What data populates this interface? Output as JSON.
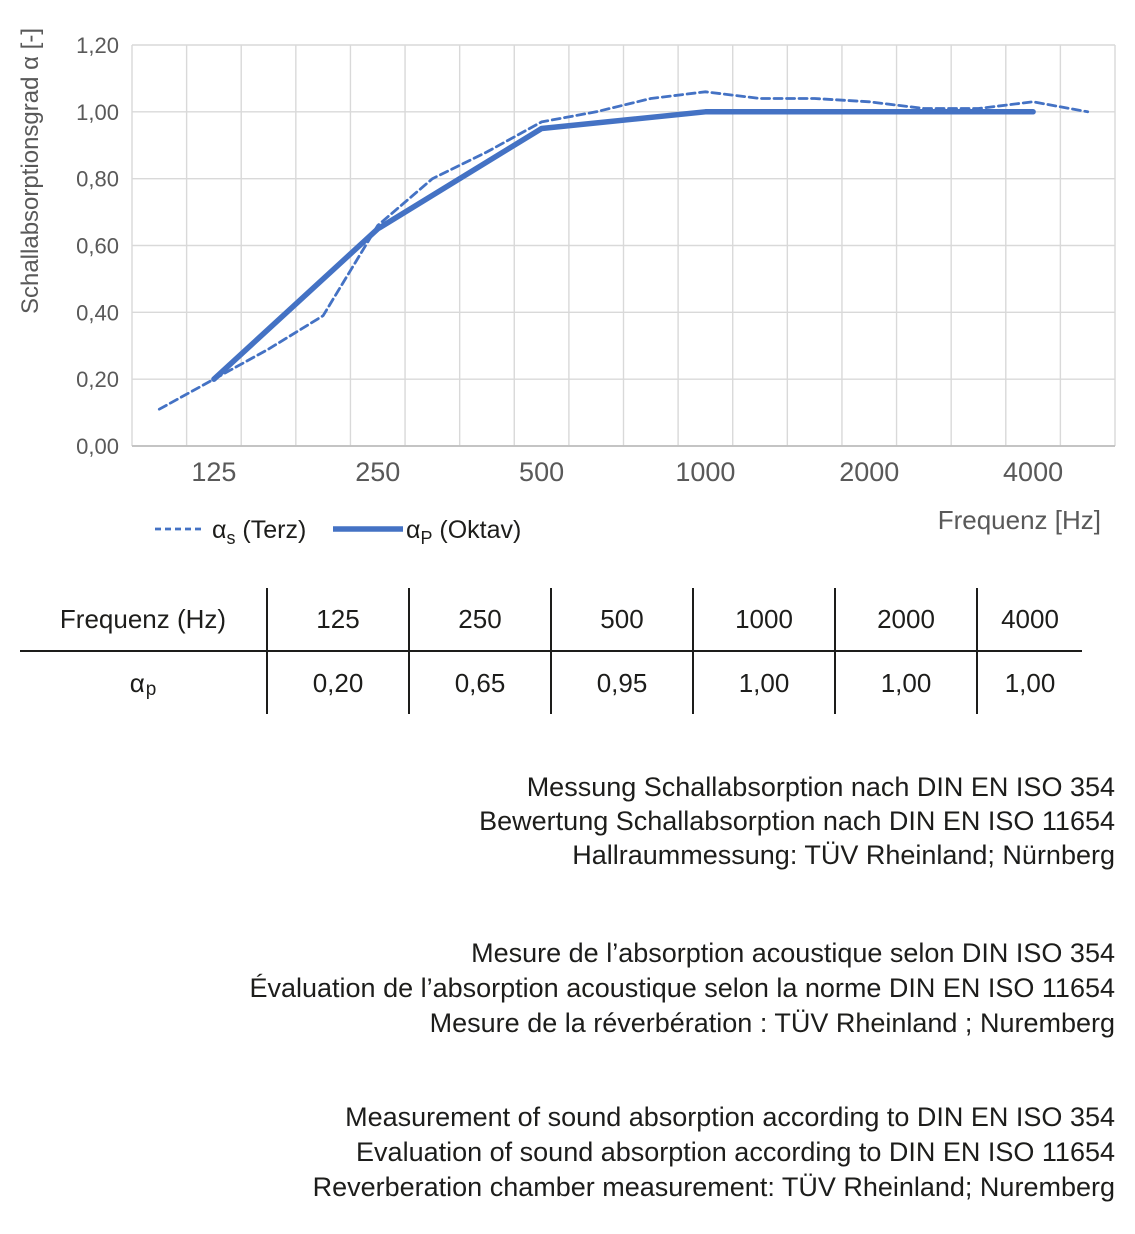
{
  "chart_data": {
    "type": "line",
    "title": "",
    "grid": true,
    "legend_position": "bottom-left",
    "x_axis": {
      "label": "Frequenz [Hz]",
      "scale": "third-octave-categories",
      "categories": [
        100,
        125,
        160,
        200,
        250,
        315,
        400,
        500,
        630,
        800,
        1000,
        1250,
        1600,
        2000,
        2500,
        3150,
        4000,
        5000
      ],
      "ticks": [
        {
          "f": 125,
          "label": "125"
        },
        {
          "f": 250,
          "label": "250"
        },
        {
          "f": 500,
          "label": "500"
        },
        {
          "f": 1000,
          "label": "1000"
        },
        {
          "f": 2000,
          "label": "2000"
        },
        {
          "f": 4000,
          "label": "4000"
        }
      ]
    },
    "y_axis": {
      "label": "Schallabsorptionsgrad α [-]",
      "min": 0,
      "max": 1.2,
      "ticks": [
        {
          "v": 0.0,
          "label": "0,00"
        },
        {
          "v": 0.2,
          "label": "0,20"
        },
        {
          "v": 0.4,
          "label": "0,40"
        },
        {
          "v": 0.6,
          "label": "0,60"
        },
        {
          "v": 0.8,
          "label": "0,80"
        },
        {
          "v": 1.0,
          "label": "1,00"
        },
        {
          "v": 1.2,
          "label": "1,20"
        }
      ]
    },
    "series": [
      {
        "name": "αs (Terz)",
        "label_base": "α",
        "label_sub": "s",
        "label_rest": " (Terz)",
        "style": "dashed",
        "points": [
          [
            100,
            0.11
          ],
          [
            125,
            0.2
          ],
          [
            160,
            0.29
          ],
          [
            200,
            0.39
          ],
          [
            250,
            0.66
          ],
          [
            315,
            0.8
          ],
          [
            400,
            0.88
          ],
          [
            500,
            0.97
          ],
          [
            630,
            1.0
          ],
          [
            800,
            1.04
          ],
          [
            1000,
            1.06
          ],
          [
            1250,
            1.04
          ],
          [
            1600,
            1.04
          ],
          [
            2000,
            1.03
          ],
          [
            2500,
            1.01
          ],
          [
            3150,
            1.01
          ],
          [
            4000,
            1.03
          ],
          [
            5000,
            1.0
          ]
        ]
      },
      {
        "name": "αP (Oktav)",
        "label_base": "α",
        "label_sub": "P",
        "label_rest": " (Oktav)",
        "style": "solid",
        "points": [
          [
            125,
            0.2
          ],
          [
            250,
            0.65
          ],
          [
            500,
            0.95
          ],
          [
            1000,
            1.0
          ],
          [
            2000,
            1.0
          ],
          [
            4000,
            1.0
          ]
        ]
      }
    ],
    "colors": {
      "series_blue": "#4472C4",
      "gridline": "#D9D9D9",
      "axis_line": "#BFBFBF",
      "tick_text": "#595959",
      "body_text": "#1d1d1b"
    }
  },
  "table": {
    "header": [
      "Frequenz (Hz)",
      "125",
      "250",
      "500",
      "1000",
      "2000",
      "4000"
    ],
    "row": {
      "label_base": "α",
      "label_sub": "p",
      "values": [
        "0,20",
        "0,65",
        "0,95",
        "1,00",
        "1,00",
        "1,00"
      ]
    }
  },
  "notes": {
    "de": [
      "Messung Schallabsorption nach DIN EN ISO 354",
      "Bewertung Schallabsorption nach DIN EN ISO 11654",
      "Hallraummessung: TÜV Rheinland; Nürnberg"
    ],
    "fr": [
      "Mesure de l’absorption acoustique selon DIN ISO 354",
      "Évaluation de l’absorption acoustique selon la norme DIN EN ISO 11654",
      "Mesure de la réverbération : TÜV Rheinland ; Nuremberg"
    ],
    "en": [
      "Measurement of sound absorption according to DIN EN ISO 354",
      "Evaluation of sound absorption according to DIN EN ISO 11654",
      "Reverberation chamber measurement: TÜV Rheinland; Nuremberg"
    ]
  }
}
